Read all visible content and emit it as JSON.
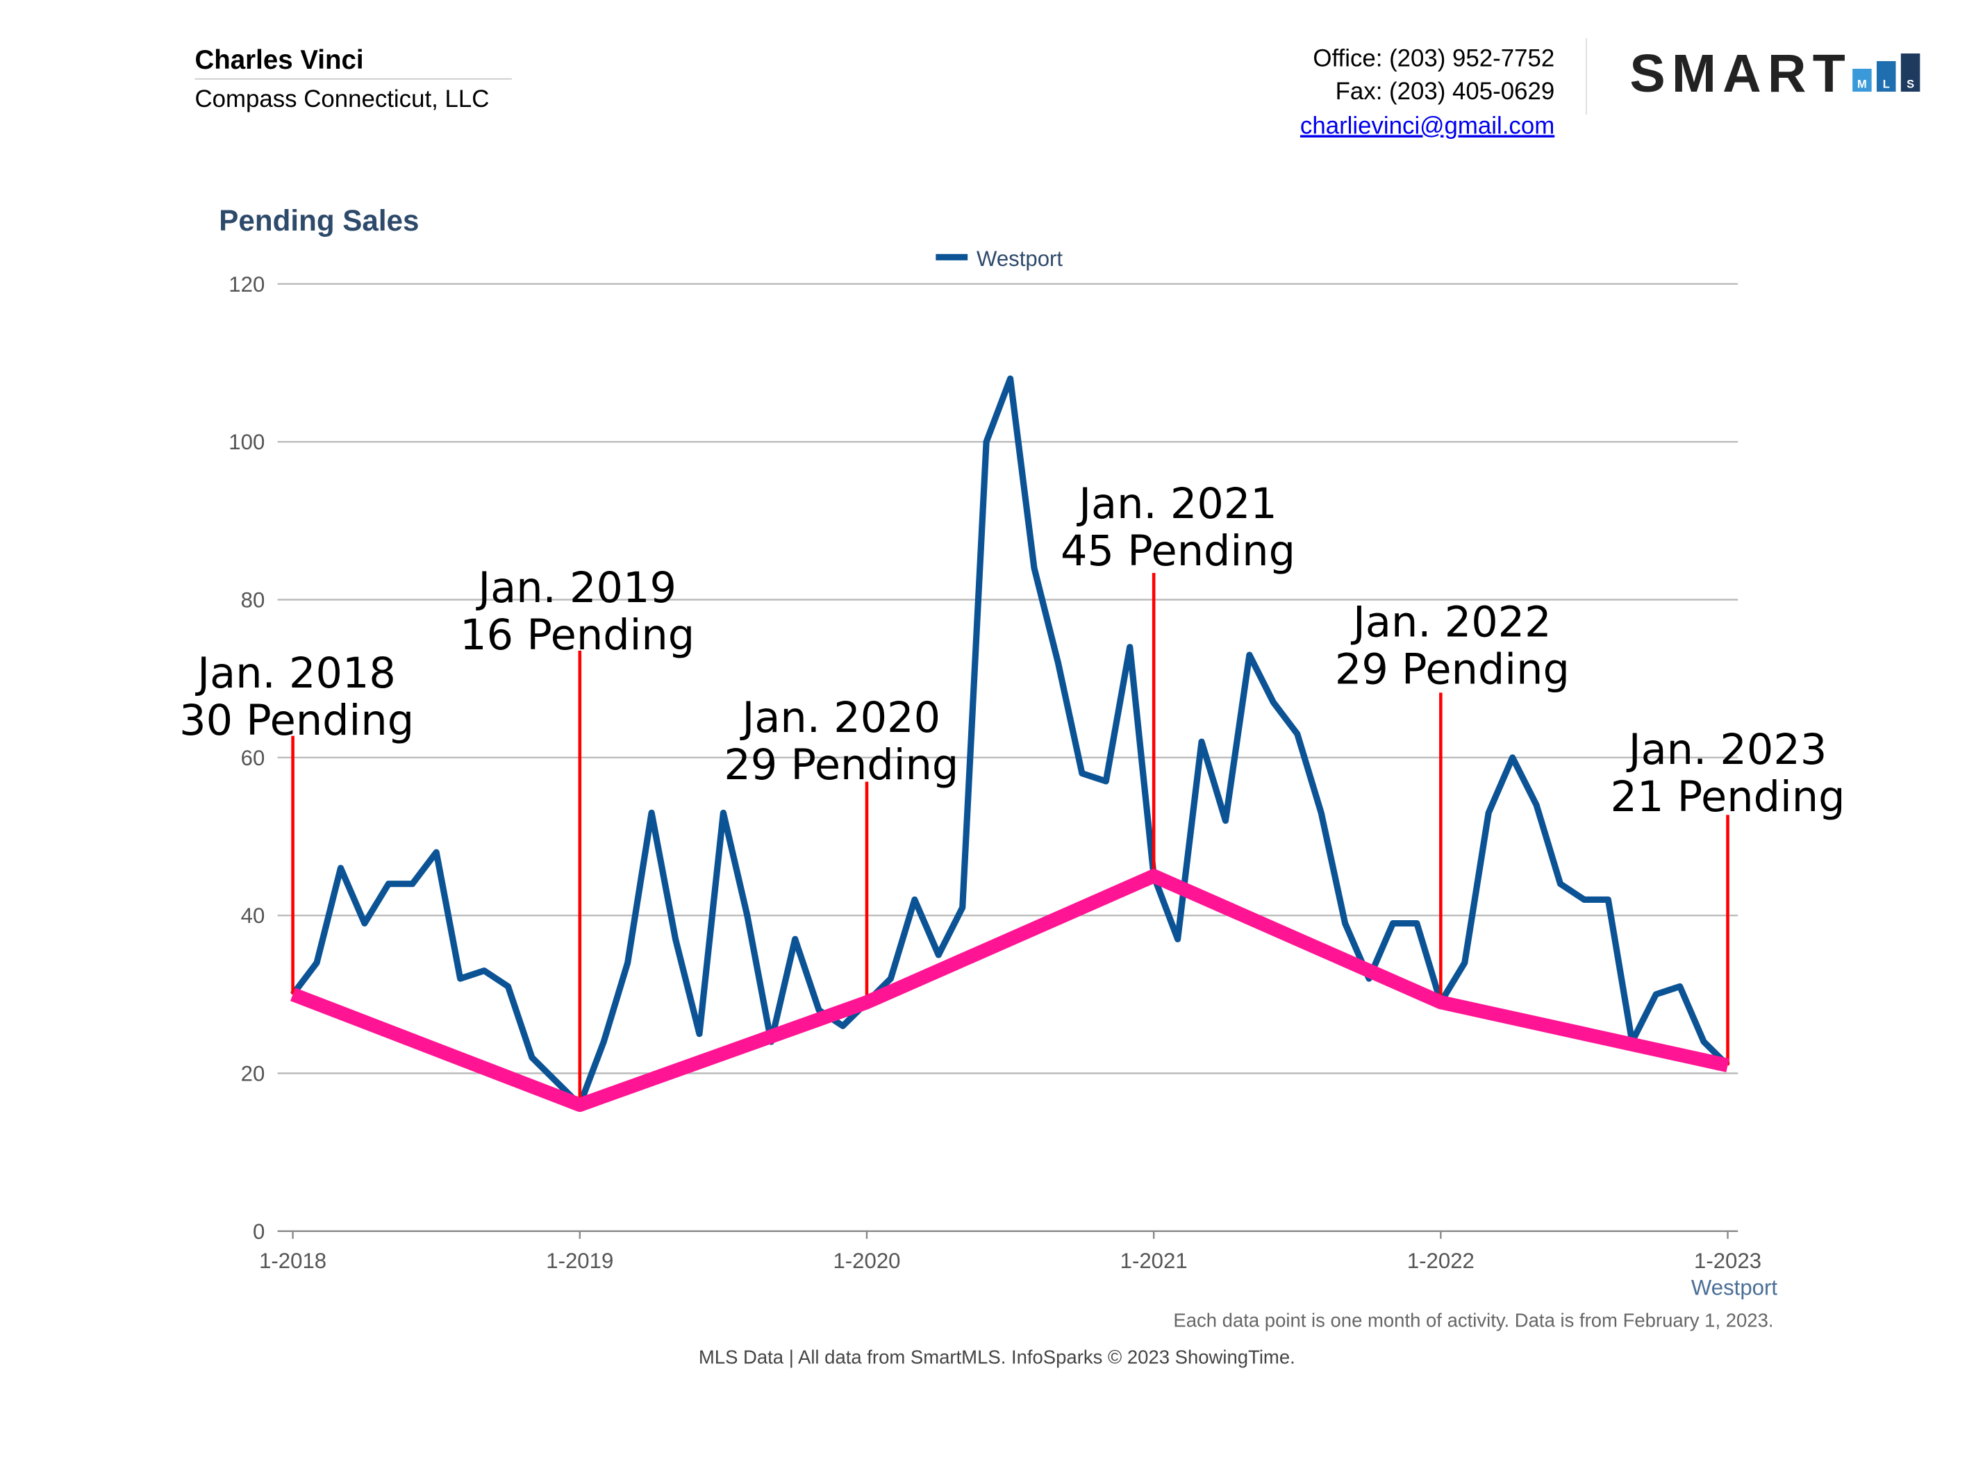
{
  "header": {
    "name": "Charles Vinci",
    "company": "Compass Connecticut, LLC",
    "office": "Office: (203) 952-7752",
    "fax": "Fax: (203) 405-0629",
    "email": "charlievinci@gmail.com"
  },
  "logo": {
    "text": "SMART",
    "sub": [
      "M",
      "L",
      "S"
    ]
  },
  "chart_data": {
    "type": "line",
    "title": "Pending Sales",
    "x": [
      "1-2018",
      null,
      null,
      null,
      null,
      null,
      null,
      null,
      null,
      null,
      null,
      null,
      "1-2019",
      null,
      null,
      null,
      null,
      null,
      null,
      null,
      null,
      null,
      null,
      null,
      "1-2020",
      null,
      null,
      null,
      null,
      null,
      null,
      null,
      null,
      null,
      null,
      null,
      "1-2021",
      null,
      null,
      null,
      null,
      null,
      null,
      null,
      null,
      null,
      null,
      null,
      "1-2022",
      null,
      null,
      null,
      null,
      null,
      null,
      null,
      null,
      null,
      null,
      null,
      "1-2023"
    ],
    "series": [
      {
        "name": "Westport",
        "color": "#0b5394",
        "values": [
          30,
          34,
          46,
          39,
          44,
          44,
          48,
          32,
          33,
          31,
          22,
          19,
          16,
          24,
          34,
          53,
          37,
          25,
          53,
          40,
          24,
          37,
          28,
          26,
          29,
          32,
          42,
          35,
          41,
          100,
          108,
          84,
          72,
          58,
          57,
          74,
          45,
          37,
          62,
          52,
          73,
          67,
          63,
          53,
          39,
          32,
          39,
          39,
          29,
          34,
          53,
          60,
          54,
          44,
          42,
          42,
          24,
          30,
          31,
          24,
          21
        ]
      }
    ],
    "trend": {
      "color": "#ff1493",
      "values": [
        30,
        16,
        29,
        45,
        29,
        21
      ]
    },
    "annotations": [
      [
        "Jan. 2018",
        "30 Pending"
      ],
      [
        "Jan. 2019",
        "16 Pending"
      ],
      [
        "Jan. 2020",
        "29 Pending"
      ],
      [
        "Jan. 2021",
        "45 Pending"
      ],
      [
        "Jan. 2022",
        "29 Pending"
      ],
      [
        "Jan. 2023",
        "21 Pending"
      ]
    ],
    "annotation_color": "#ff0000",
    "ylim": [
      0,
      120
    ],
    "yticks": [
      0,
      20,
      40,
      60,
      80,
      100,
      120
    ],
    "grid": true,
    "xlabel": "Westport",
    "note": "Each data point is one month of activity. Data is from February 1, 2023.",
    "source": "MLS Data | All data from SmartMLS. InfoSparks © 2023 ShowingTime."
  }
}
